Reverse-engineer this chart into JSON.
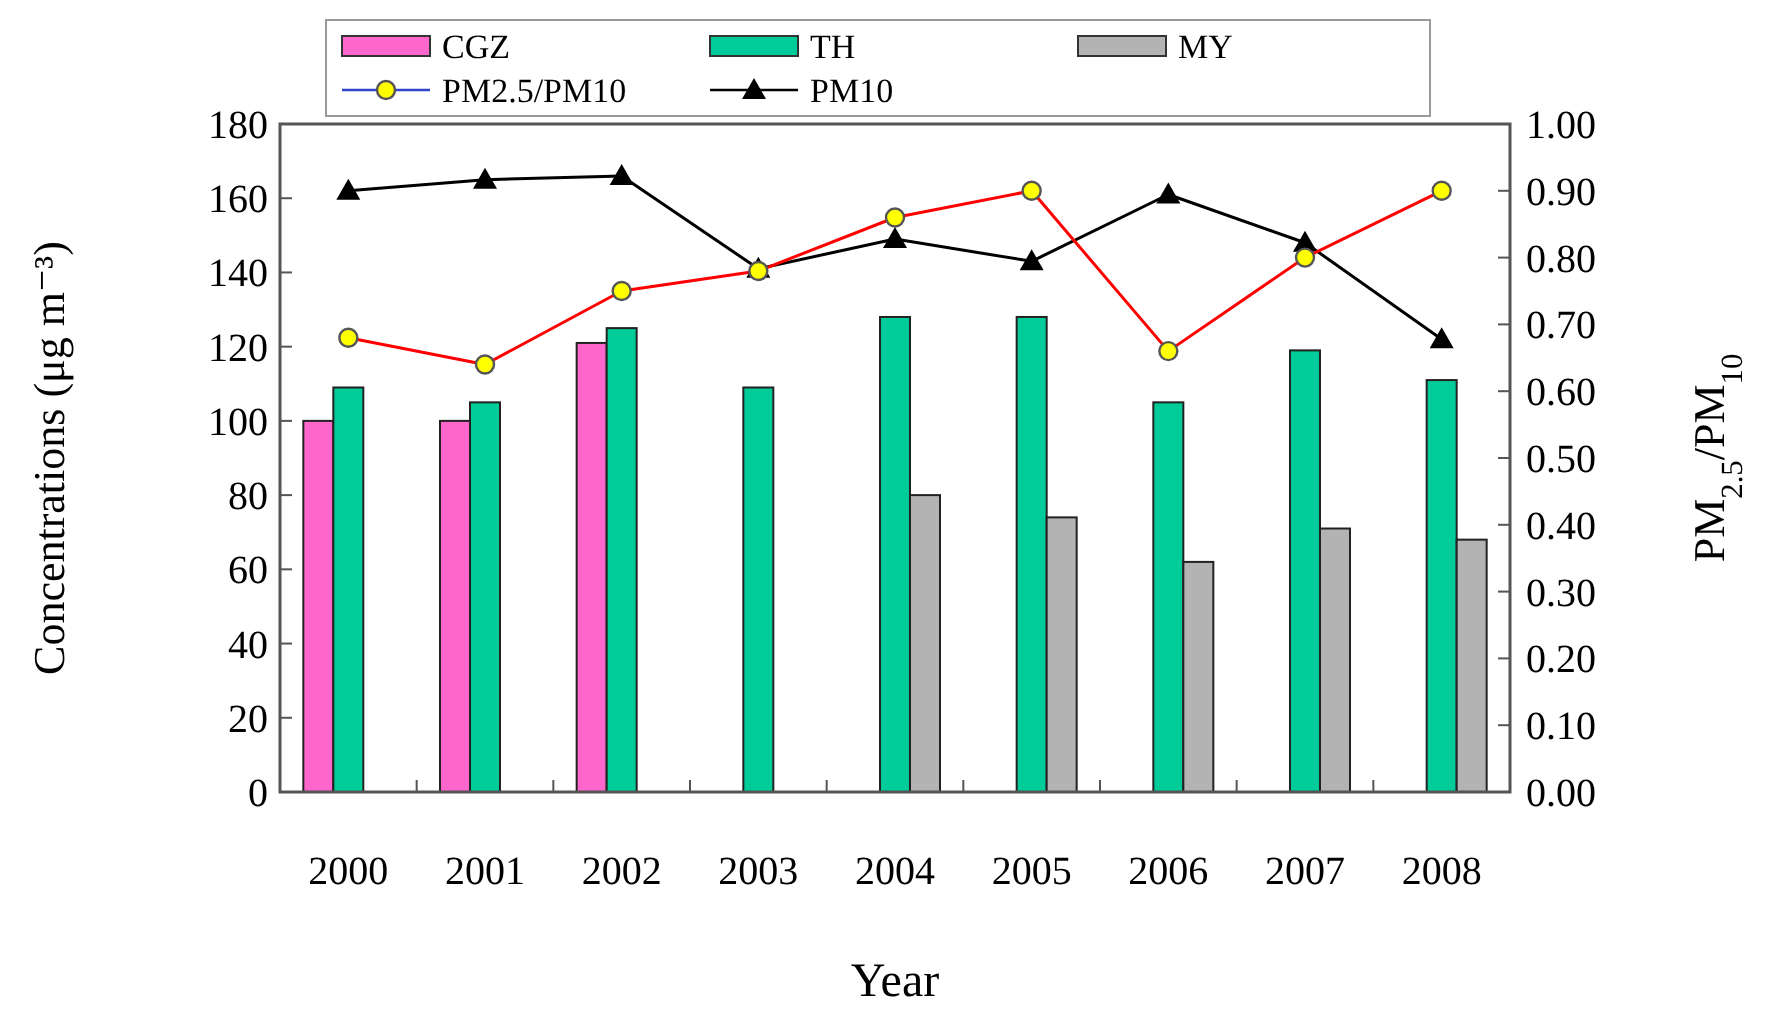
{
  "chart_data": {
    "type": "bar",
    "xlabel": "Year",
    "ylabel": "Concentrations (μg m⁻³)",
    "y2label": "PM$_{2.5}$/PM$_{10}$",
    "categories": [
      "2000",
      "2001",
      "2002",
      "2003",
      "2004",
      "2005",
      "2006",
      "2007",
      "2008"
    ],
    "series": [
      {
        "name": "CGZ",
        "color": "#ff66cc",
        "values": [
          100,
          100,
          121,
          null,
          null,
          null,
          null,
          null,
          null
        ]
      },
      {
        "name": "TH",
        "color": "#00cc99",
        "values": [
          109,
          105,
          125,
          109,
          128,
          128,
          105,
          119,
          111
        ]
      },
      {
        "name": "MY",
        "color": "#b3b3b3",
        "values": [
          null,
          null,
          null,
          null,
          80,
          74,
          62,
          71,
          68
        ]
      },
      {
        "name": "PM2.5/PM10",
        "type": "line",
        "axis": "y2",
        "marker": "circle",
        "color": "#ff0000",
        "values": [
          0.68,
          0.64,
          0.75,
          0.78,
          0.86,
          0.9,
          0.66,
          0.8,
          0.9
        ]
      },
      {
        "name": "PM10",
        "type": "line",
        "marker": "triangle",
        "color": "#000000",
        "values": [
          162,
          165,
          166,
          141,
          149,
          143,
          161,
          148,
          122
        ]
      }
    ],
    "ylim": [
      0,
      180
    ],
    "yticks": [
      0,
      20,
      40,
      60,
      80,
      100,
      120,
      140,
      160,
      180
    ],
    "y2lim": [
      0,
      1
    ],
    "y2ticks": [
      {
        "value": 0,
        "label": "0.00"
      },
      {
        "value": 0.1,
        "label": "0.10"
      },
      {
        "value": 0.2,
        "label": "0.20"
      },
      {
        "value": 0.3,
        "label": "0.30"
      },
      {
        "value": 0.4,
        "label": "0.40"
      },
      {
        "value": 0.5,
        "label": "0.50"
      },
      {
        "value": 0.6,
        "label": "0.60"
      },
      {
        "value": 0.7,
        "label": "0.70"
      },
      {
        "value": 0.8,
        "label": "0.80"
      },
      {
        "value": 0.9,
        "label": "0.90"
      },
      {
        "value": 1,
        "label": "1.00"
      }
    ],
    "legend": "top",
    "grid": false
  }
}
